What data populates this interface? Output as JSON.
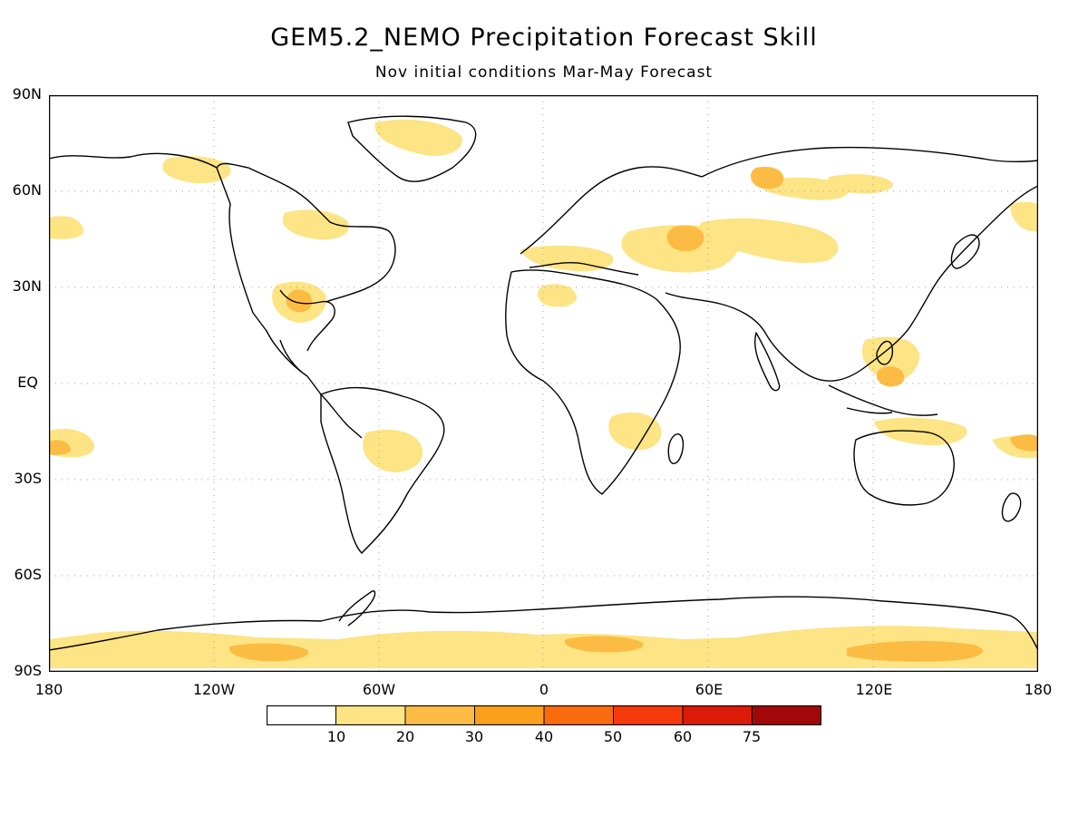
{
  "title": "GEM5.2_NEMO Precipitation Forecast Skill",
  "subtitle": "Nov initial conditions  Mar-May Forecast",
  "lat_labels": [
    "90N",
    "60N",
    "30N",
    "EQ",
    "30S",
    "60S",
    "90S"
  ],
  "lon_labels": [
    "180",
    "120W",
    "60W",
    "0",
    "60E",
    "120E",
    "180"
  ],
  "colorbar": {
    "thresholds": [
      "10",
      "20",
      "30",
      "40",
      "50",
      "60",
      "75"
    ],
    "colors": [
      "#ffffff",
      "#fde484",
      "#fcbc43",
      "#fba01a",
      "#f96b0d",
      "#f43a0c",
      "#db1a08",
      "#a20807"
    ]
  },
  "chart_data": {
    "type": "heatmap",
    "variable": "precipitation forecast skill",
    "projection": "equirectangular",
    "lon_range": [
      -180,
      180
    ],
    "lat_range": [
      -90,
      90
    ],
    "grid": "dotted, 60 deg longitude x 30 deg latitude",
    "skill_regions": [
      {
        "lon": [
          -170,
          -110
        ],
        "lat": [
          -85,
          -75
        ],
        "class": "10-20"
      },
      {
        "lon": [
          -40,
          30
        ],
        "lat": [
          -85,
          -75
        ],
        "class": "10-20"
      },
      {
        "lon": [
          0,
          20
        ],
        "lat": [
          -82,
          -78
        ],
        "class": "20-30"
      },
      {
        "lon": [
          70,
          180
        ],
        "lat": [
          -85,
          -75
        ],
        "class": "10-20"
      },
      {
        "lon": [
          100,
          140
        ],
        "lat": [
          -82,
          -78
        ],
        "class": "20-30"
      },
      {
        "lon": [
          20,
          100
        ],
        "lat": [
          35,
          55
        ],
        "class": "10-20"
      },
      {
        "lon": [
          50,
          65
        ],
        "lat": [
          38,
          48
        ],
        "class": "20-30"
      },
      {
        "lon": [
          70,
          120
        ],
        "lat": [
          55,
          72
        ],
        "class": "10-20"
      },
      {
        "lon": [
          78,
          95
        ],
        "lat": [
          62,
          70
        ],
        "class": "20-30"
      },
      {
        "lon": [
          120,
          150
        ],
        "lat": [
          5,
          18
        ],
        "class": "10-20"
      },
      {
        "lon": [
          160,
          180
        ],
        "lat": [
          -25,
          -17
        ],
        "class": "20-30"
      },
      {
        "lon": [
          -85,
          -75
        ],
        "lat": [
          18,
          30
        ],
        "class": "10-20"
      },
      {
        "lon": [
          25,
          40
        ],
        "lat": [
          -20,
          -10
        ],
        "class": "10-20"
      },
      {
        "lon": [
          -175,
          -160
        ],
        "lat": [
          -25,
          -15
        ],
        "class": "20-30"
      }
    ]
  }
}
